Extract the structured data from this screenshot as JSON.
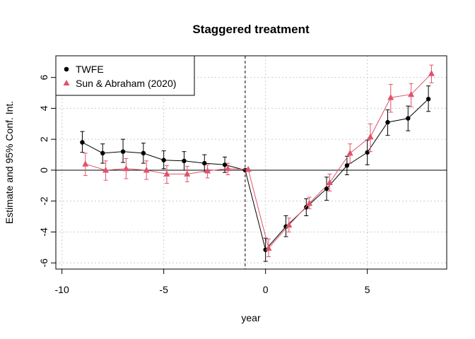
{
  "chart_data": {
    "type": "scatter",
    "title": "Staggered treatment",
    "xlabel": "year",
    "ylabel": "Estimate and 95% Conf. Int.",
    "xlim": [
      -10.3,
      8.9
    ],
    "ylim": [
      -6.4,
      7.4
    ],
    "xticks": [
      -10,
      -5,
      0,
      5
    ],
    "xtick_labels": [
      "-10",
      "-5",
      "0",
      "5"
    ],
    "yticks": [
      -6,
      -4,
      -2,
      0,
      2,
      4,
      6
    ],
    "ytick_labels": [
      "-6",
      "-4",
      "-2",
      "0",
      "2",
      "4",
      "6"
    ],
    "grid": true,
    "reference_lines": {
      "horizontal_y": 0,
      "vertical_x": -1
    },
    "legend_position": "top-left",
    "series": [
      {
        "name": "TWFE",
        "color": "#000000",
        "marker": "circle",
        "x": [
          -9,
          -8,
          -7,
          -6,
          -5,
          -4,
          -3,
          -2,
          -1,
          0,
          1,
          2,
          3,
          4,
          5,
          6,
          7,
          8
        ],
        "y": [
          1.8,
          1.1,
          1.2,
          1.1,
          0.65,
          0.6,
          0.45,
          0.35,
          0,
          -5.15,
          -3.65,
          -2.4,
          -1.2,
          0.3,
          1.15,
          3.1,
          3.35,
          4.6
        ],
        "lower": [
          1.15,
          0.45,
          0.5,
          0.45,
          0.1,
          0.0,
          -0.1,
          -0.15,
          0,
          -5.9,
          -4.3,
          -2.95,
          -1.95,
          -0.3,
          0.35,
          2.25,
          2.55,
          3.8
        ],
        "upper": [
          2.5,
          1.7,
          2.0,
          1.75,
          1.25,
          1.2,
          1.0,
          0.85,
          0,
          -4.4,
          -2.95,
          -1.85,
          -0.45,
          0.9,
          1.95,
          3.9,
          4.15,
          5.45
        ]
      },
      {
        "name": "Sun & Abraham (2020)",
        "color": "#DF536B",
        "marker": "triangle",
        "x": [
          -8.85,
          -7.85,
          -6.85,
          -5.85,
          -4.85,
          -3.85,
          -2.85,
          -1.85,
          -0.85,
          0.15,
          1.15,
          2.15,
          3.15,
          4.15,
          5.15,
          6.15,
          7.15,
          8.15
        ],
        "y": [
          0.4,
          0.0,
          0.1,
          0.0,
          -0.25,
          -0.25,
          -0.05,
          0.1,
          0.05,
          -5.05,
          -3.55,
          -2.15,
          -0.8,
          1.1,
          2.15,
          4.7,
          4.9,
          6.25
        ],
        "lower": [
          -0.35,
          -0.65,
          -0.55,
          -0.6,
          -0.85,
          -0.75,
          -0.5,
          -0.3,
          0.05,
          -5.6,
          -4.0,
          -2.5,
          -1.35,
          0.45,
          1.2,
          3.75,
          4.1,
          5.65
        ],
        "upper": [
          1.1,
          0.6,
          0.75,
          0.6,
          0.3,
          0.25,
          0.35,
          0.45,
          0.05,
          -4.45,
          -3.1,
          -1.75,
          -0.25,
          1.7,
          3.0,
          5.55,
          5.6,
          6.8
        ]
      }
    ]
  }
}
